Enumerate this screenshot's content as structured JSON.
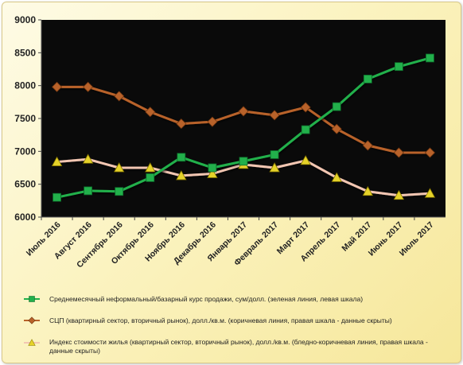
{
  "chart_data": {
    "type": "line",
    "categories": [
      "Июль 2016",
      "Август 2016",
      "Сентябрь 2016",
      "Октябрь 2016",
      "Ноябрь 2016",
      "Декабрь 2016",
      "Январь 2017",
      "Февраль 2017",
      "Март 2017",
      "Апрель 2017",
      "Май 2017",
      "Июнь 2017",
      "Июль 2017"
    ],
    "ylim": [
      6000,
      9000
    ],
    "yticks": [
      6000,
      6500,
      7000,
      7500,
      8000,
      8500,
      9000
    ],
    "grid": false,
    "legend_position": "bottom",
    "series": [
      {
        "name": "Среднемесячный неформальный/базарный курс продажи, сум/долл. (зеленая линия, левая шкала)",
        "color": "#22b04b",
        "marker": "square",
        "values": [
          6300,
          6400,
          6390,
          6600,
          6910,
          6750,
          6850,
          6950,
          7330,
          7680,
          8100,
          8290,
          8420
        ]
      },
      {
        "name": "СЦП (квартирный сектор, вторичный рынок), долл./кв.м. (коричневая линия, правая шкала - данные скрыты)",
        "color": "#b8622a",
        "marker": "diamond",
        "values": [
          7980,
          7980,
          7840,
          7600,
          7420,
          7450,
          7610,
          7550,
          7670,
          7340,
          7090,
          6980,
          6980
        ]
      },
      {
        "name": "Индекс стоимости жилья (квартирный сектор, вторичный рынок), долл./кв.м. (бледно-коричневая линия, правая шкала - данные скрыты)",
        "color": "#f2c6b2",
        "marker": "triangle",
        "markerColor": "#e5d22a",
        "values": [
          6840,
          6880,
          6750,
          6750,
          6630,
          6660,
          6800,
          6750,
          6860,
          6600,
          6390,
          6330,
          6360
        ]
      }
    ],
    "colors": {
      "plot_background": "#0a0a0a",
      "frame_background": "#fbf3c0"
    }
  }
}
